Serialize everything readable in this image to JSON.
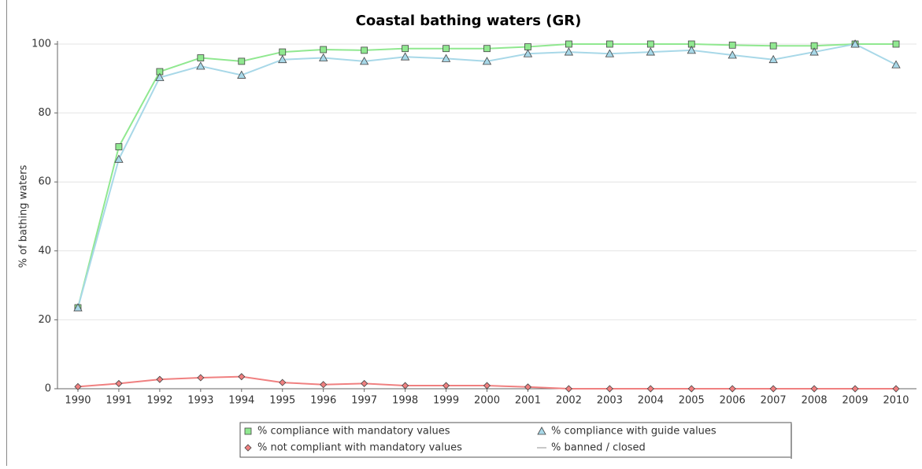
{
  "chart_data": {
    "type": "line",
    "title": "Coastal bathing waters (GR)",
    "y_label": "% of bathing waters",
    "categories": [
      "1990",
      "1991",
      "1992",
      "1993",
      "1994",
      "1995",
      "1996",
      "1997",
      "1998",
      "1999",
      "2000",
      "2001",
      "2002",
      "2003",
      "2004",
      "2005",
      "2006",
      "2007",
      "2008",
      "2009",
      "2010"
    ],
    "ylim": [
      0,
      100
    ],
    "yticks": [
      0,
      20,
      40,
      60,
      80,
      100
    ],
    "grid": true,
    "legend": "bottom",
    "series": [
      {
        "name": "% compliance with mandatory values",
        "color": "#90e890",
        "marker": "square",
        "values": [
          23.5,
          70.2,
          92,
          96,
          95,
          97.7,
          98.4,
          98.2,
          98.7,
          98.7,
          98.7,
          99.2,
          100,
          100,
          100,
          100,
          99.7,
          99.5,
          99.5,
          100,
          100
        ]
      },
      {
        "name": "% compliance with guide values",
        "color": "#a8d8e8",
        "marker": "triangle",
        "values": [
          23.5,
          66.6,
          90.3,
          93.6,
          91,
          95.5,
          96,
          95,
          96.3,
          95.8,
          95,
          97.2,
          97.7,
          97.2,
          97.7,
          98.2,
          96.8,
          95.5,
          97.7,
          100,
          94
        ]
      },
      {
        "name": "% not compliant with mandatory values",
        "color": "#f08080",
        "marker": "diamond",
        "values": [
          0.6,
          1.5,
          2.7,
          3.2,
          3.5,
          1.8,
          1.2,
          1.5,
          0.9,
          0.9,
          0.9,
          0.5,
          0,
          0,
          0,
          0,
          0,
          0,
          0,
          0,
          0
        ]
      },
      {
        "name": "% banned / closed",
        "color": "#c8c8c8",
        "marker": "none",
        "values": [
          null,
          null,
          null,
          null,
          null,
          null,
          null,
          null,
          null,
          null,
          null,
          null,
          null,
          null,
          null,
          null,
          null,
          null,
          null,
          null,
          null
        ]
      }
    ]
  }
}
